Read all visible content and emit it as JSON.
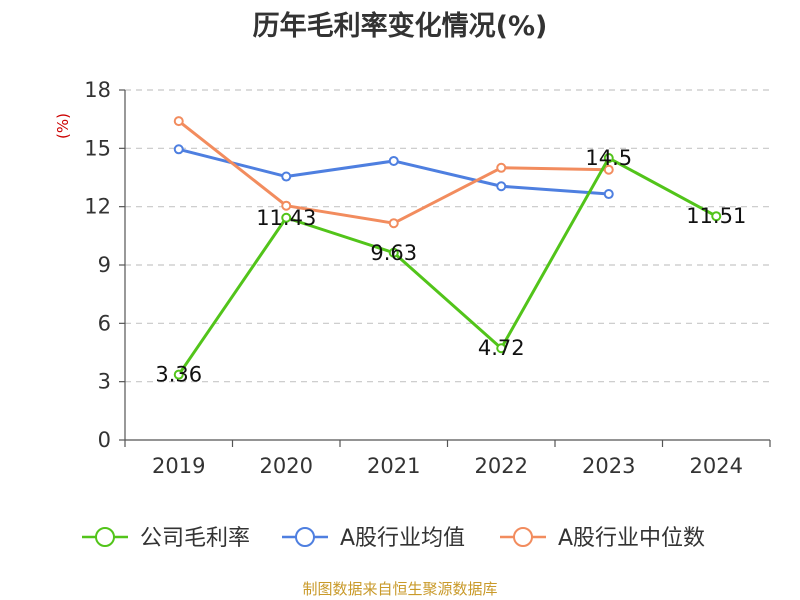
{
  "colors": {
    "company": "#52c41a",
    "industry_avg": "#4e7fe0",
    "industry_median": "#f28c5e",
    "unit": "#cc0000",
    "source": "#c99a2a"
  },
  "source_text": "制图数据来自恒生聚源数据库",
  "chart_data": {
    "type": "line",
    "title": "历年毛利率变化情况(%)",
    "ylabel": "(%)",
    "ylim": [
      0,
      18
    ],
    "yticks": [
      0,
      3,
      6,
      9,
      12,
      15,
      18
    ],
    "categories": [
      "2019",
      "2020",
      "2021",
      "2022",
      "2023",
      "2024"
    ],
    "grid": true,
    "legend_position": "bottom",
    "series": [
      {
        "name": "公司毛利率",
        "values": [
          3.36,
          11.43,
          9.63,
          4.72,
          14.5,
          11.51
        ],
        "labels": [
          "3.36",
          "11.43",
          "9.63",
          "4.72",
          "14.5",
          "11.51"
        ]
      },
      {
        "name": "A股行业均值",
        "values": [
          14.95,
          13.55,
          14.35,
          13.05,
          12.65,
          null
        ]
      },
      {
        "name": "A股行业中位数",
        "values": [
          16.4,
          12.05,
          11.15,
          14.0,
          13.9,
          null
        ]
      }
    ]
  }
}
